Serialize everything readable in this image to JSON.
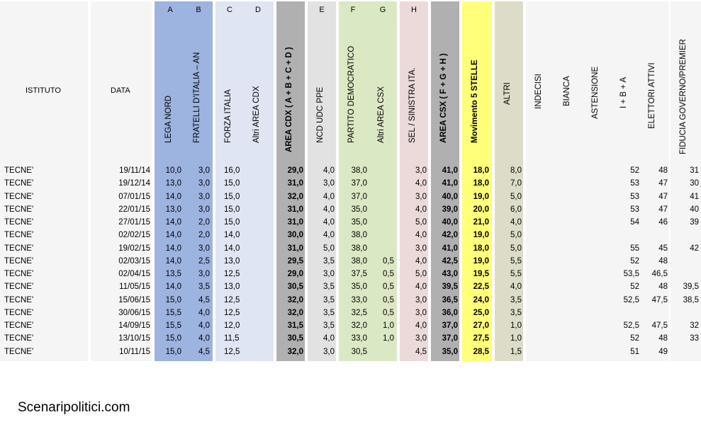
{
  "colors": {
    "lega_band": "#9db3e0",
    "fdi_band": "#9db3e0",
    "fi_band": "#dfe5f2",
    "area_cdx_band": "#b0b0b0",
    "ncd_band": "#e2e2e2",
    "pd_band": "#dbe8c4",
    "sel_band": "#ecd9d9",
    "area_csx_band": "#b0b0b0",
    "m5s_band": "#ffff7a",
    "altri_band": "#dcdcc8",
    "light_band": "#f5f5f5"
  },
  "header": {
    "istituto": "ISTITUTO",
    "data": "DATA",
    "letters": [
      "A",
      "B",
      "C",
      "D",
      "E",
      "F",
      "G",
      "H"
    ],
    "columns": [
      "LEGA NORD",
      "FRATELLI D'ITALIA – AN",
      "FORZA ITALIA",
      "Altri AREA CDX",
      "AREA CDX   ( A + B + C + D )",
      "NCD UDC PPE",
      "PARTITO DEMOCRATICO",
      "Altri AREA CSX",
      "SEL / SINISTRA ITA.",
      "AREA CSX   ( F + G + H )",
      "Movimento 5 STELLE",
      "ALTRI",
      "INDECISI",
      "BIANCA",
      "ASTENSIONE",
      "I + B + A",
      "ELETTORI ATTIVI",
      "FIDUCIA GOVERNO/PREMIER"
    ]
  },
  "rows": [
    {
      "istituto": "TECNE'",
      "data": "19/11/14",
      "lega": "10,0",
      "fdi": "3,0",
      "fi": "16,0",
      "altri_cdx": "",
      "area_cdx": "29,0",
      "ncd": "4,0",
      "pd": "38,0",
      "altri_csx": "",
      "sel": "3,0",
      "area_csx": "41,0",
      "m5s": "18,0",
      "altri": "8,0",
      "ibaa": "52",
      "elettori": "48",
      "fiducia": "31"
    },
    {
      "istituto": "TECNE'",
      "data": "19/12/14",
      "lega": "13,0",
      "fdi": "3,0",
      "fi": "15,0",
      "altri_cdx": "",
      "area_cdx": "31,0",
      "ncd": "3,0",
      "pd": "37,0",
      "altri_csx": "",
      "sel": "4,0",
      "area_csx": "41,0",
      "m5s": "18,0",
      "altri": "7,0",
      "ibaa": "53",
      "elettori": "47",
      "fiducia": "30"
    },
    {
      "istituto": "TECNE'",
      "data": "07/01/15",
      "lega": "14,0",
      "fdi": "3,0",
      "fi": "15,0",
      "altri_cdx": "",
      "area_cdx": "32,0",
      "ncd": "4,0",
      "pd": "37,0",
      "altri_csx": "",
      "sel": "3,0",
      "area_csx": "40,0",
      "m5s": "19,0",
      "altri": "5,0",
      "ibaa": "53",
      "elettori": "47",
      "fiducia": "41"
    },
    {
      "istituto": "TECNE'",
      "data": "22/01/15",
      "lega": "13,0",
      "fdi": "3,0",
      "fi": "15,0",
      "altri_cdx": "",
      "area_cdx": "31,0",
      "ncd": "4,0",
      "pd": "35,0",
      "altri_csx": "",
      "sel": "4,0",
      "area_csx": "39,0",
      "m5s": "20,0",
      "altri": "6,0",
      "ibaa": "53",
      "elettori": "47",
      "fiducia": "40"
    },
    {
      "istituto": "TECNE'",
      "data": "27/01/15",
      "lega": "14,0",
      "fdi": "2,0",
      "fi": "15,0",
      "altri_cdx": "",
      "area_cdx": "31,0",
      "ncd": "4,0",
      "pd": "35,0",
      "altri_csx": "",
      "sel": "5,0",
      "area_csx": "40,0",
      "m5s": "21,0",
      "altri": "4,0",
      "ibaa": "54",
      "elettori": "46",
      "fiducia": "39"
    },
    {
      "istituto": "TECNE'",
      "data": "02/02/15",
      "lega": "14,0",
      "fdi": "2,0",
      "fi": "14,0",
      "altri_cdx": "",
      "area_cdx": "30,0",
      "ncd": "4,0",
      "pd": "38,0",
      "altri_csx": "",
      "sel": "4,0",
      "area_csx": "42,0",
      "m5s": "19,0",
      "altri": "5,0",
      "ibaa": "",
      "elettori": "",
      "fiducia": ""
    },
    {
      "istituto": "TECNE'",
      "data": "19/02/15",
      "lega": "14,0",
      "fdi": "3,0",
      "fi": "14,0",
      "altri_cdx": "",
      "area_cdx": "31,0",
      "ncd": "5,0",
      "pd": "38,0",
      "altri_csx": "",
      "sel": "3,0",
      "area_csx": "41,0",
      "m5s": "18,0",
      "altri": "5,0",
      "ibaa": "55",
      "elettori": "45",
      "fiducia": "42"
    },
    {
      "istituto": "TECNE'",
      "data": "02/03/15",
      "lega": "14,0",
      "fdi": "2,5",
      "fi": "13,0",
      "altri_cdx": "",
      "area_cdx": "29,5",
      "ncd": "3,5",
      "pd": "38,0",
      "altri_csx": "0,5",
      "sel": "4,0",
      "area_csx": "42,5",
      "m5s": "19,0",
      "altri": "5,5",
      "ibaa": "52",
      "elettori": "48",
      "fiducia": ""
    },
    {
      "istituto": "TECNE'",
      "data": "02/04/15",
      "lega": "13,5",
      "fdi": "3,0",
      "fi": "12,5",
      "altri_cdx": "",
      "area_cdx": "29,0",
      "ncd": "3,0",
      "pd": "37,5",
      "altri_csx": "0,5",
      "sel": "5,0",
      "area_csx": "43,0",
      "m5s": "19,5",
      "altri": "5,5",
      "ibaa": "53,5",
      "elettori": "46,5",
      "fiducia": ""
    },
    {
      "istituto": "TECNE'",
      "data": "11/05/15",
      "lega": "14,0",
      "fdi": "3,5",
      "fi": "13,0",
      "altri_cdx": "",
      "area_cdx": "30,5",
      "ncd": "3,5",
      "pd": "35,0",
      "altri_csx": "0,5",
      "sel": "4,0",
      "area_csx": "39,5",
      "m5s": "22,5",
      "altri": "4,0",
      "ibaa": "52",
      "elettori": "48",
      "fiducia": "39,5"
    },
    {
      "istituto": "TECNE'",
      "data": "15/06/15",
      "lega": "15,0",
      "fdi": "4,5",
      "fi": "12,5",
      "altri_cdx": "",
      "area_cdx": "32,0",
      "ncd": "3,5",
      "pd": "33,0",
      "altri_csx": "0,5",
      "sel": "3,0",
      "area_csx": "36,5",
      "m5s": "24,0",
      "altri": "3,5",
      "ibaa": "52,5",
      "elettori": "47,5",
      "fiducia": "38,5"
    },
    {
      "istituto": "TECNE'",
      "data": "30/06/15",
      "lega": "15,5",
      "fdi": "4,0",
      "fi": "12,5",
      "altri_cdx": "",
      "area_cdx": "32,0",
      "ncd": "3,5",
      "pd": "32,5",
      "altri_csx": "0,5",
      "sel": "3,0",
      "area_csx": "36,0",
      "m5s": "25,0",
      "altri": "3,5",
      "ibaa": "",
      "elettori": "",
      "fiducia": ""
    },
    {
      "istituto": "TECNE'",
      "data": "14/09/15",
      "lega": "15,5",
      "fdi": "4,0",
      "fi": "12,0",
      "altri_cdx": "",
      "area_cdx": "31,5",
      "ncd": "3,5",
      "pd": "32,0",
      "altri_csx": "1,0",
      "sel": "4,0",
      "area_csx": "37,0",
      "m5s": "27,0",
      "altri": "1,0",
      "ibaa": "52,5",
      "elettori": "47,5",
      "fiducia": "32"
    },
    {
      "istituto": "TECNE'",
      "data": "13/10/15",
      "lega": "15,0",
      "fdi": "4,0",
      "fi": "11,5",
      "altri_cdx": "",
      "area_cdx": "30,5",
      "ncd": "4,0",
      "pd": "33,0",
      "altri_csx": "1,0",
      "sel": "3,0",
      "area_csx": "37,0",
      "m5s": "27,5",
      "altri": "1,0",
      "ibaa": "52",
      "elettori": "48",
      "fiducia": "33"
    },
    {
      "istituto": "TECNE'",
      "data": "10/11/15",
      "lega": "15,0",
      "fdi": "4,5",
      "fi": "12,5",
      "altri_cdx": "",
      "area_cdx": "32,0",
      "ncd": "3,0",
      "pd": "30,5",
      "altri_csx": "",
      "sel": "4,5",
      "area_csx": "35,0",
      "m5s": "28,5",
      "altri": "1,5",
      "ibaa": "51",
      "elettori": "49",
      "fiducia": ""
    }
  ],
  "footer": "Scenaripolitici.com"
}
